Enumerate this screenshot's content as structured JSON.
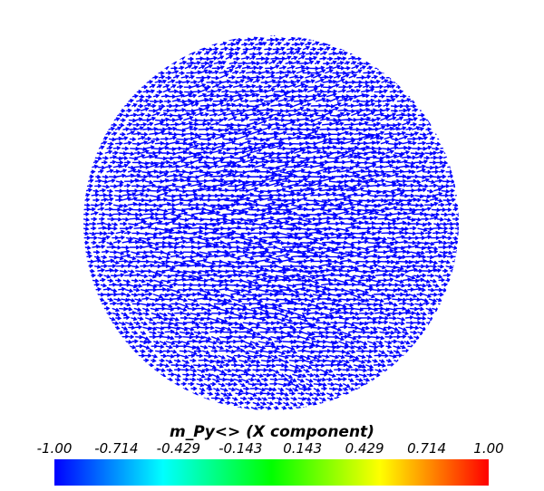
{
  "chart_data": {
    "type": "glyph-field",
    "shape": "sphere",
    "glyph": "arrow",
    "glyph_color_value": -1.0,
    "colorbar": {
      "title": "m_Py<> (X component)",
      "range": [
        -1.0,
        1.0
      ],
      "tick_labels": [
        "-1.00",
        "-0.714",
        "-0.429",
        "-0.143",
        "0.143",
        "0.429",
        "0.714",
        "1.00"
      ],
      "colormap": [
        "#0000ff",
        "#0080ff",
        "#00ffff",
        "#00ff80",
        "#00ff00",
        "#80ff00",
        "#ffff00",
        "#ff8000",
        "#ff0000"
      ],
      "orientation": "horizontal",
      "placement": "bottom"
    }
  }
}
